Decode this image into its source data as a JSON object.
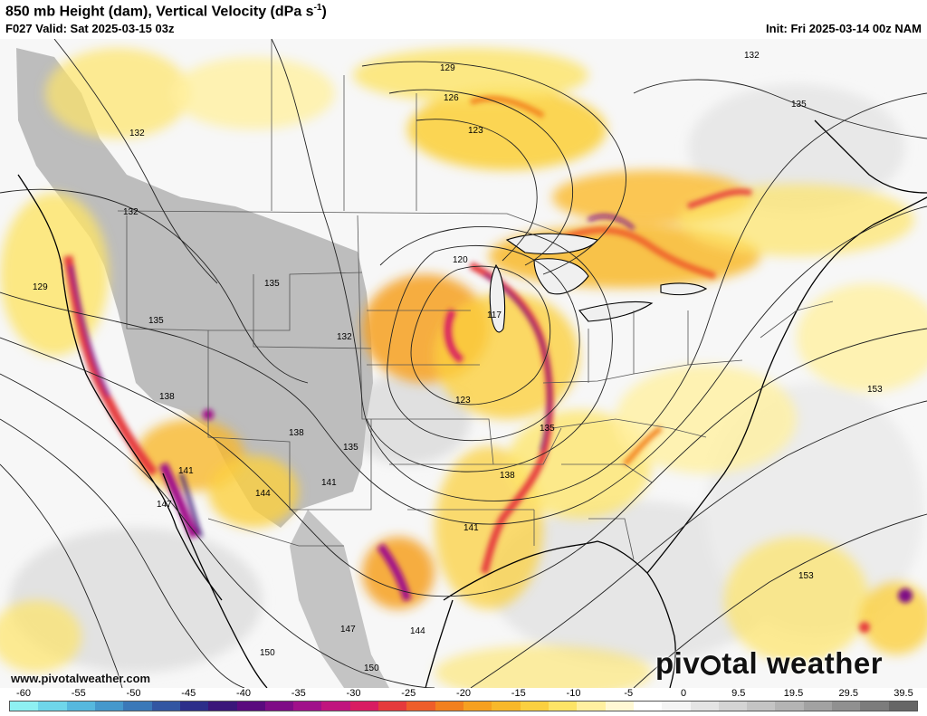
{
  "header": {
    "title": "850 mb Height (dam), Vertical Velocity (dPa s",
    "title_sup": "-1",
    "title_end": ")",
    "valid": "F027 Valid: Sat 2025-03-15 03z",
    "init": "Init: Fri 2025-03-14 00z NAM"
  },
  "footer": {
    "url": "www.pivotalweather.com",
    "brand_left": "piv",
    "brand_right": "tal weather"
  },
  "contour_labels": [
    "129",
    "126",
    "123",
    "132",
    "135",
    "132",
    "132",
    "129",
    "135",
    "135",
    "132",
    "120",
    "117",
    "123",
    "138",
    "138",
    "135",
    "141",
    "141",
    "144",
    "147",
    "141",
    "138",
    "135",
    "153",
    "153",
    "147",
    "144",
    "150",
    "150"
  ],
  "colorbar": {
    "ticks": [
      "-60",
      "-55",
      "-50",
      "-45",
      "-40",
      "-35",
      "-30",
      "-25",
      "-20",
      "-15",
      "-10",
      "-5",
      "0",
      "9.5",
      "19.5",
      "29.5",
      "39.5"
    ],
    "colors": [
      "#8ef0f2",
      "#6fd6ea",
      "#56b8de",
      "#4598cc",
      "#3a78b8",
      "#3256a2",
      "#2c2e8a",
      "#3a167a",
      "#5a0a7e",
      "#7e0c86",
      "#a0108a",
      "#c0157e",
      "#d81c62",
      "#e53a3c",
      "#ee5e2a",
      "#f2801e",
      "#f6a020",
      "#f8b82a",
      "#fbd040",
      "#fde466",
      "#fff0a0",
      "#fff8d4",
      "#ffffff",
      "#f4f4f4",
      "#e4e4e4",
      "#d4d4d4",
      "#c4c4c4",
      "#b4b4b4",
      "#a2a2a2",
      "#909090",
      "#7c7c7c",
      "#666666"
    ]
  }
}
